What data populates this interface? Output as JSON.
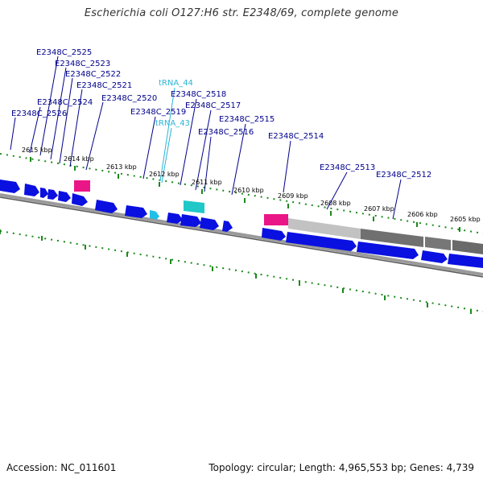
{
  "title": "Escherichia coli O127:H6 str. E2348/69, complete genome",
  "footer": {
    "accession": "Accession: NC_011601",
    "topology": "Topology: circular; Length: 4,965,553 bp; Genes: 4,739"
  },
  "colors": {
    "gene": "#0a10e0",
    "trna": "#22bfe6",
    "rrna": "#ea1687",
    "misc_feature": "#20c8c8",
    "gc_light": "#c2c2c2",
    "gc_dark": "#707070",
    "backbone": "#888888",
    "tick": "#1a8a1a",
    "gene_label": "#00008b",
    "trna_label": "#2ab6d6"
  },
  "gene_labels": [
    "E2348C_2525",
    "E2348C_2523",
    "E2348C_2522",
    "E2348C_2521",
    "E2348C_2524",
    "E2348C_2526",
    "E2348C_2520",
    "E2348C_2519",
    "E2348C_2518",
    "E2348C_2517",
    "E2348C_2516",
    "E2348C_2515",
    "E2348C_2514",
    "E2348C_2513",
    "E2348C_2512"
  ],
  "trna_labels": [
    "tRNA_44",
    "tRNA_43"
  ],
  "kbp_ticks": [
    "2615 kbp",
    "2614 kbp",
    "2613 kbp",
    "2612 kbp",
    "2611 kbp",
    "2610 kbp",
    "2609 kbp",
    "2608 kbp",
    "2607 kbp",
    "2606 kbp",
    "2605 kbp"
  ]
}
